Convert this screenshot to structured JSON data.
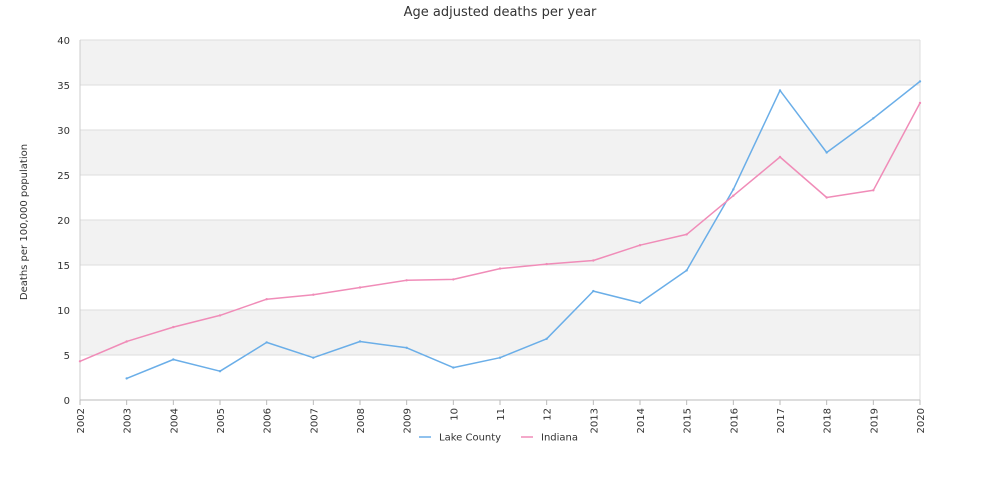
{
  "chart_data": {
    "type": "line",
    "title": "Age adjusted deaths per year",
    "xlabel": "",
    "ylabel": "Deaths per 100,000 population",
    "x": [
      "2002",
      "2003",
      "2004",
      "2005",
      "2006",
      "2007",
      "2008",
      "2009",
      "10",
      "11",
      "12",
      "2013",
      "2014",
      "2015",
      "2016",
      "2017",
      "2018",
      "2019",
      "2020"
    ],
    "ylim": [
      0,
      40
    ],
    "yticks": [
      0,
      5,
      10,
      15,
      20,
      25,
      30,
      35,
      40
    ],
    "grid": true,
    "legend_position": "bottom",
    "series": [
      {
        "name": "Lake County",
        "color": "#6aaee8",
        "values": [
          null,
          2.4,
          4.5,
          3.2,
          6.4,
          4.7,
          6.5,
          5.8,
          3.6,
          4.7,
          6.8,
          12.1,
          10.8,
          14.4,
          23.4,
          34.4,
          27.5,
          31.3,
          35.4
        ]
      },
      {
        "name": "Indiana",
        "color": "#f08cb8",
        "values": [
          4.3,
          6.5,
          8.1,
          9.4,
          11.2,
          11.7,
          12.5,
          13.3,
          13.4,
          14.6,
          15.1,
          15.5,
          17.2,
          18.4,
          22.7,
          27.0,
          22.5,
          23.3,
          33.0
        ]
      }
    ]
  }
}
